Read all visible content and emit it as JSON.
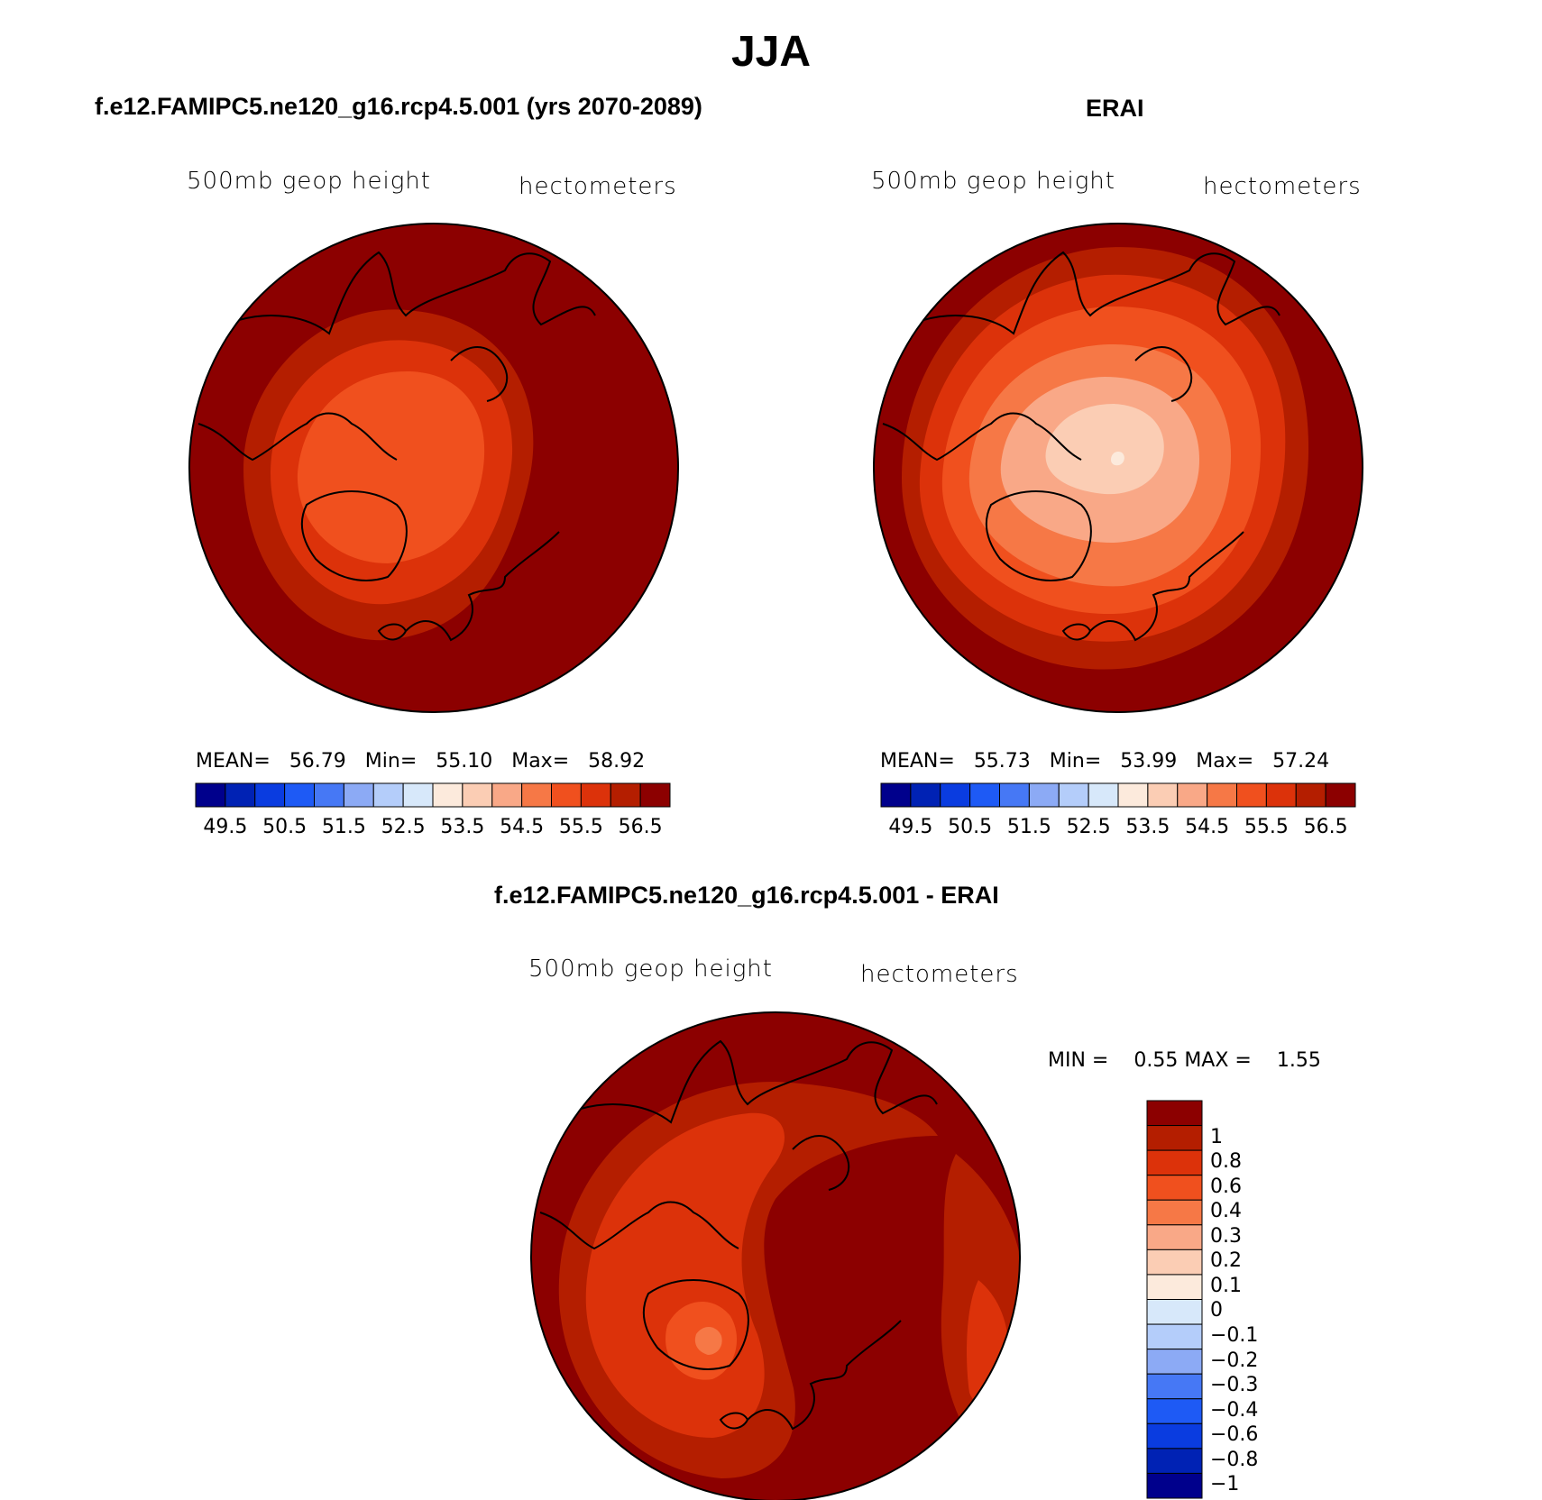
{
  "figure": {
    "title": "JJA"
  },
  "panels": [
    {
      "id": "model",
      "title": "f.e12.FAMIPC5.ne120_g16.rcp4.5.001 (yrs 2070-2089)",
      "left_label": "500mb geop height",
      "right_label": "hectometers",
      "stats": {
        "mean_label": "MEAN=",
        "mean": "56.79",
        "min_label": "Min=",
        "min": "55.10",
        "max_label": "Max=",
        "max": "58.92"
      }
    },
    {
      "id": "obs",
      "title": "ERAI",
      "left_label": "500mb geop height",
      "right_label": "hectometers",
      "stats": {
        "mean_label": "MEAN=",
        "mean": "55.73",
        "min_label": "Min=",
        "min": "53.99",
        "max_label": "Max=",
        "max": "57.24"
      }
    },
    {
      "id": "diff",
      "title": "f.e12.FAMIPC5.ne120_g16.rcp4.5.001 - ERAI",
      "left_label": "500mb geop height",
      "right_label": "hectometers",
      "stats": {
        "min_label": "MIN =",
        "min": "0.55",
        "max_label": "MAX =",
        "max": "1.55"
      }
    }
  ],
  "horizontal_colorbar": {
    "colors": [
      "#00008c",
      "#0022b4",
      "#0a3ce0",
      "#1e5af5",
      "#4678f5",
      "#8caaf5",
      "#b4cdfa",
      "#d7e8fa",
      "#fceadc",
      "#fbcdb4",
      "#f9a887",
      "#f67846",
      "#f0501e",
      "#dc320a",
      "#b41e00",
      "#8c0000"
    ],
    "tick_labels": [
      "49.5",
      "50.5",
      "51.5",
      "52.5",
      "53.5",
      "54.5",
      "55.5",
      "56.5"
    ]
  },
  "vertical_colorbar": {
    "colors_top_to_bottom": [
      "#8c0000",
      "#b41e00",
      "#dc320a",
      "#f0501e",
      "#f67846",
      "#f9a887",
      "#fbcdb4",
      "#fceadc",
      "#d7e8fa",
      "#b4cdfa",
      "#8caaf5",
      "#4678f5",
      "#1e5af5",
      "#0a3ce0",
      "#0022b4",
      "#00008c"
    ],
    "labels_top_to_bottom": [
      "1",
      "0.8",
      "0.6",
      "0.4",
      "0.3",
      "0.2",
      "0.1",
      "0",
      "−0.1",
      "−0.2",
      "−0.3",
      "−0.4",
      "−0.6",
      "−0.8",
      "−1"
    ]
  },
  "map_colors": {
    "c1": "#8c0000",
    "c2": "#b41e00",
    "c3": "#dc320a",
    "c4": "#f0501e",
    "c5": "#f67846",
    "c6": "#f9a887",
    "c7": "#fbcdb4",
    "c8": "#fceadc"
  }
}
